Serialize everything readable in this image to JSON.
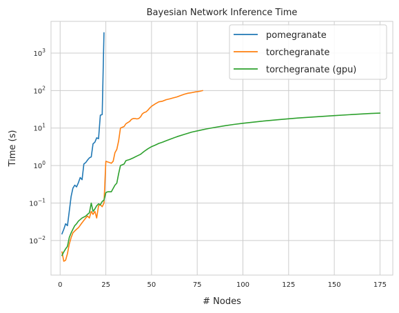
{
  "chart_data": {
    "type": "line",
    "title": "Bayesian Network Inference Time",
    "xlabel": "# Nodes",
    "ylabel": "Time (s)",
    "xlim": [
      -5,
      182
    ],
    "ylim": [
      0.0012,
      7000
    ],
    "yscale": "log",
    "x_ticks": [
      0,
      25,
      50,
      75,
      100,
      125,
      150,
      175
    ],
    "y_ticks": [
      0.01,
      0.1,
      1,
      10,
      100,
      1000
    ],
    "y_tick_labels": [
      {
        "base": "10",
        "exp": "−2"
      },
      {
        "base": "10",
        "exp": "−1"
      },
      {
        "base": "10",
        "exp": "0"
      },
      {
        "base": "10",
        "exp": "1"
      },
      {
        "base": "10",
        "exp": "2"
      },
      {
        "base": "10",
        "exp": "3"
      }
    ],
    "grid": true,
    "legend_position": "top-right",
    "series": [
      {
        "name": "pomegranate",
        "color": "#1f77b4",
        "x": [
          1,
          2,
          3,
          4,
          5,
          6,
          7,
          8,
          9,
          10,
          11,
          12,
          13,
          14,
          15,
          16,
          17,
          18,
          19,
          20,
          21,
          22,
          23,
          24
        ],
        "y": [
          0.015,
          0.02,
          0.028,
          0.025,
          0.06,
          0.15,
          0.25,
          0.3,
          0.27,
          0.35,
          0.48,
          0.42,
          1.1,
          1.2,
          1.4,
          1.6,
          1.7,
          3.8,
          4.2,
          5.5,
          5.2,
          22,
          23,
          3500
        ]
      },
      {
        "name": "torchegranate",
        "color": "#ff7f0e",
        "x": [
          1,
          2,
          3,
          4,
          5,
          6,
          7,
          8,
          9,
          10,
          12,
          14,
          15,
          16,
          17,
          18,
          19,
          20,
          21,
          22,
          23,
          24,
          25,
          26,
          27,
          28,
          29,
          30,
          31,
          32,
          33,
          34,
          35,
          36,
          37,
          38,
          39,
          40,
          41,
          42,
          43,
          44,
          45,
          46,
          47,
          48,
          49,
          50,
          52,
          54,
          56,
          58,
          60,
          62,
          64,
          66,
          68,
          70,
          72,
          74,
          76,
          78
        ],
        "y": [
          0.005,
          0.0028,
          0.003,
          0.0045,
          0.008,
          0.012,
          0.016,
          0.018,
          0.02,
          0.022,
          0.03,
          0.04,
          0.045,
          0.04,
          0.06,
          0.05,
          0.06,
          0.04,
          0.085,
          0.09,
          0.08,
          0.1,
          1.3,
          1.25,
          1.2,
          1.15,
          1.3,
          2.2,
          2.7,
          4.5,
          10,
          10.5,
          11,
          13,
          14,
          15,
          17,
          18,
          18,
          17.5,
          18,
          20,
          24,
          26,
          27,
          30,
          34,
          38,
          44,
          50,
          52,
          57,
          60,
          64,
          68,
          74,
          80,
          85,
          88,
          92,
          95,
          100
        ]
      },
      {
        "name": "torchegranate (gpu)",
        "color": "#2ca02c",
        "x": [
          1,
          2,
          3,
          4,
          5,
          6,
          7,
          8,
          9,
          10,
          12,
          14,
          15,
          16,
          17,
          18,
          19,
          20,
          21,
          22,
          23,
          24,
          25,
          26,
          28,
          30,
          31,
          32,
          33,
          34,
          35,
          36,
          38,
          40,
          42,
          44,
          46,
          48,
          50,
          52,
          54,
          56,
          58,
          60,
          64,
          68,
          72,
          76,
          80,
          85,
          90,
          95,
          100,
          110,
          120,
          130,
          140,
          150,
          160,
          170,
          175
        ],
        "y": [
          0.004,
          0.005,
          0.006,
          0.007,
          0.012,
          0.016,
          0.02,
          0.025,
          0.028,
          0.033,
          0.04,
          0.045,
          0.05,
          0.055,
          0.1,
          0.06,
          0.07,
          0.085,
          0.095,
          0.09,
          0.11,
          0.12,
          0.19,
          0.2,
          0.2,
          0.3,
          0.34,
          0.6,
          1.0,
          1.05,
          1.1,
          1.35,
          1.45,
          1.6,
          1.8,
          2.0,
          2.4,
          2.8,
          3.2,
          3.5,
          3.9,
          4.2,
          4.6,
          5.0,
          5.9,
          6.8,
          7.8,
          8.6,
          9.5,
          10.5,
          11.5,
          12.5,
          13.4,
          15.2,
          16.9,
          18.5,
          20,
          21.5,
          23,
          24.5,
          25
        ]
      }
    ]
  }
}
